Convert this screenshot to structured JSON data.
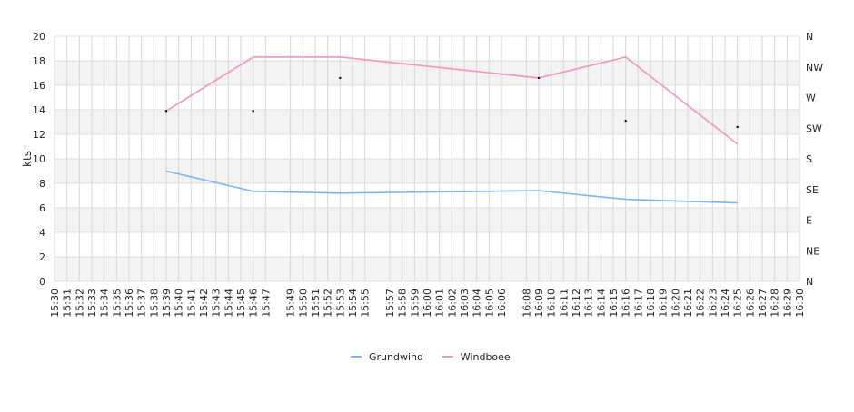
{
  "chart_data": {
    "type": "line",
    "title": "",
    "xlabel": "",
    "ylabel": "kts",
    "ylim": [
      0,
      20
    ],
    "y_ticks": [
      0,
      2,
      4,
      6,
      8,
      10,
      12,
      14,
      16,
      18,
      20
    ],
    "y2_labels": [
      "N",
      "NE",
      "E",
      "SE",
      "S",
      "SW",
      "W",
      "NW",
      "N"
    ],
    "y2_range": [
      0,
      360
    ],
    "x_ticks": [
      "15:30",
      "15:31",
      "15:32",
      "15:33",
      "15:34",
      "15:35",
      "15:36",
      "15:37",
      "15:38",
      "15:39",
      "15:40",
      "15:41",
      "15:42",
      "15:43",
      "15:44",
      "15:45",
      "15:46",
      "15:47",
      "15:49",
      "15:50",
      "15:51",
      "15:52",
      "15:53",
      "15:54",
      "15:55",
      "15:57",
      "15:58",
      "15:59",
      "16:00",
      "16:01",
      "16:02",
      "16:03",
      "16:04",
      "16:05",
      "16:06",
      "16:08",
      "16:09",
      "16:10",
      "16:11",
      "16:12",
      "16:13",
      "16:14",
      "16:15",
      "16:16",
      "16:17",
      "16:18",
      "16:19",
      "16:20",
      "16:21",
      "16:22",
      "16:23",
      "16:24",
      "16:25",
      "16:26",
      "16:27",
      "16:28",
      "16:29",
      "16:30"
    ],
    "legend_position": "bottom-center",
    "grid": true,
    "series": [
      {
        "name": "Grundwind",
        "color": "#7cb5ec",
        "points": [
          {
            "x": "15:39",
            "y": 9.0
          },
          {
            "x": "15:46",
            "y": 7.35
          },
          {
            "x": "15:53",
            "y": 7.2
          },
          {
            "x": "16:09",
            "y": 7.4
          },
          {
            "x": "16:16",
            "y": 6.7
          },
          {
            "x": "16:25",
            "y": 6.4
          }
        ]
      },
      {
        "name": "Windboee",
        "color": "#f491c2",
        "points": [
          {
            "x": "15:39",
            "y": 13.9
          },
          {
            "x": "15:46",
            "y": 18.3
          },
          {
            "x": "15:53",
            "y": 18.3
          },
          {
            "x": "16:09",
            "y": 16.6
          },
          {
            "x": "16:16",
            "y": 18.3
          },
          {
            "x": "16:25",
            "y": 11.2
          }
        ]
      }
    ],
    "direction_markers": [
      {
        "x": "15:39",
        "y": 13.9
      },
      {
        "x": "15:46",
        "y": 13.9
      },
      {
        "x": "15:53",
        "y": 16.6
      },
      {
        "x": "16:09",
        "y": 16.6
      },
      {
        "x": "16:16",
        "y": 13.1
      },
      {
        "x": "16:25",
        "y": 12.6
      }
    ]
  }
}
